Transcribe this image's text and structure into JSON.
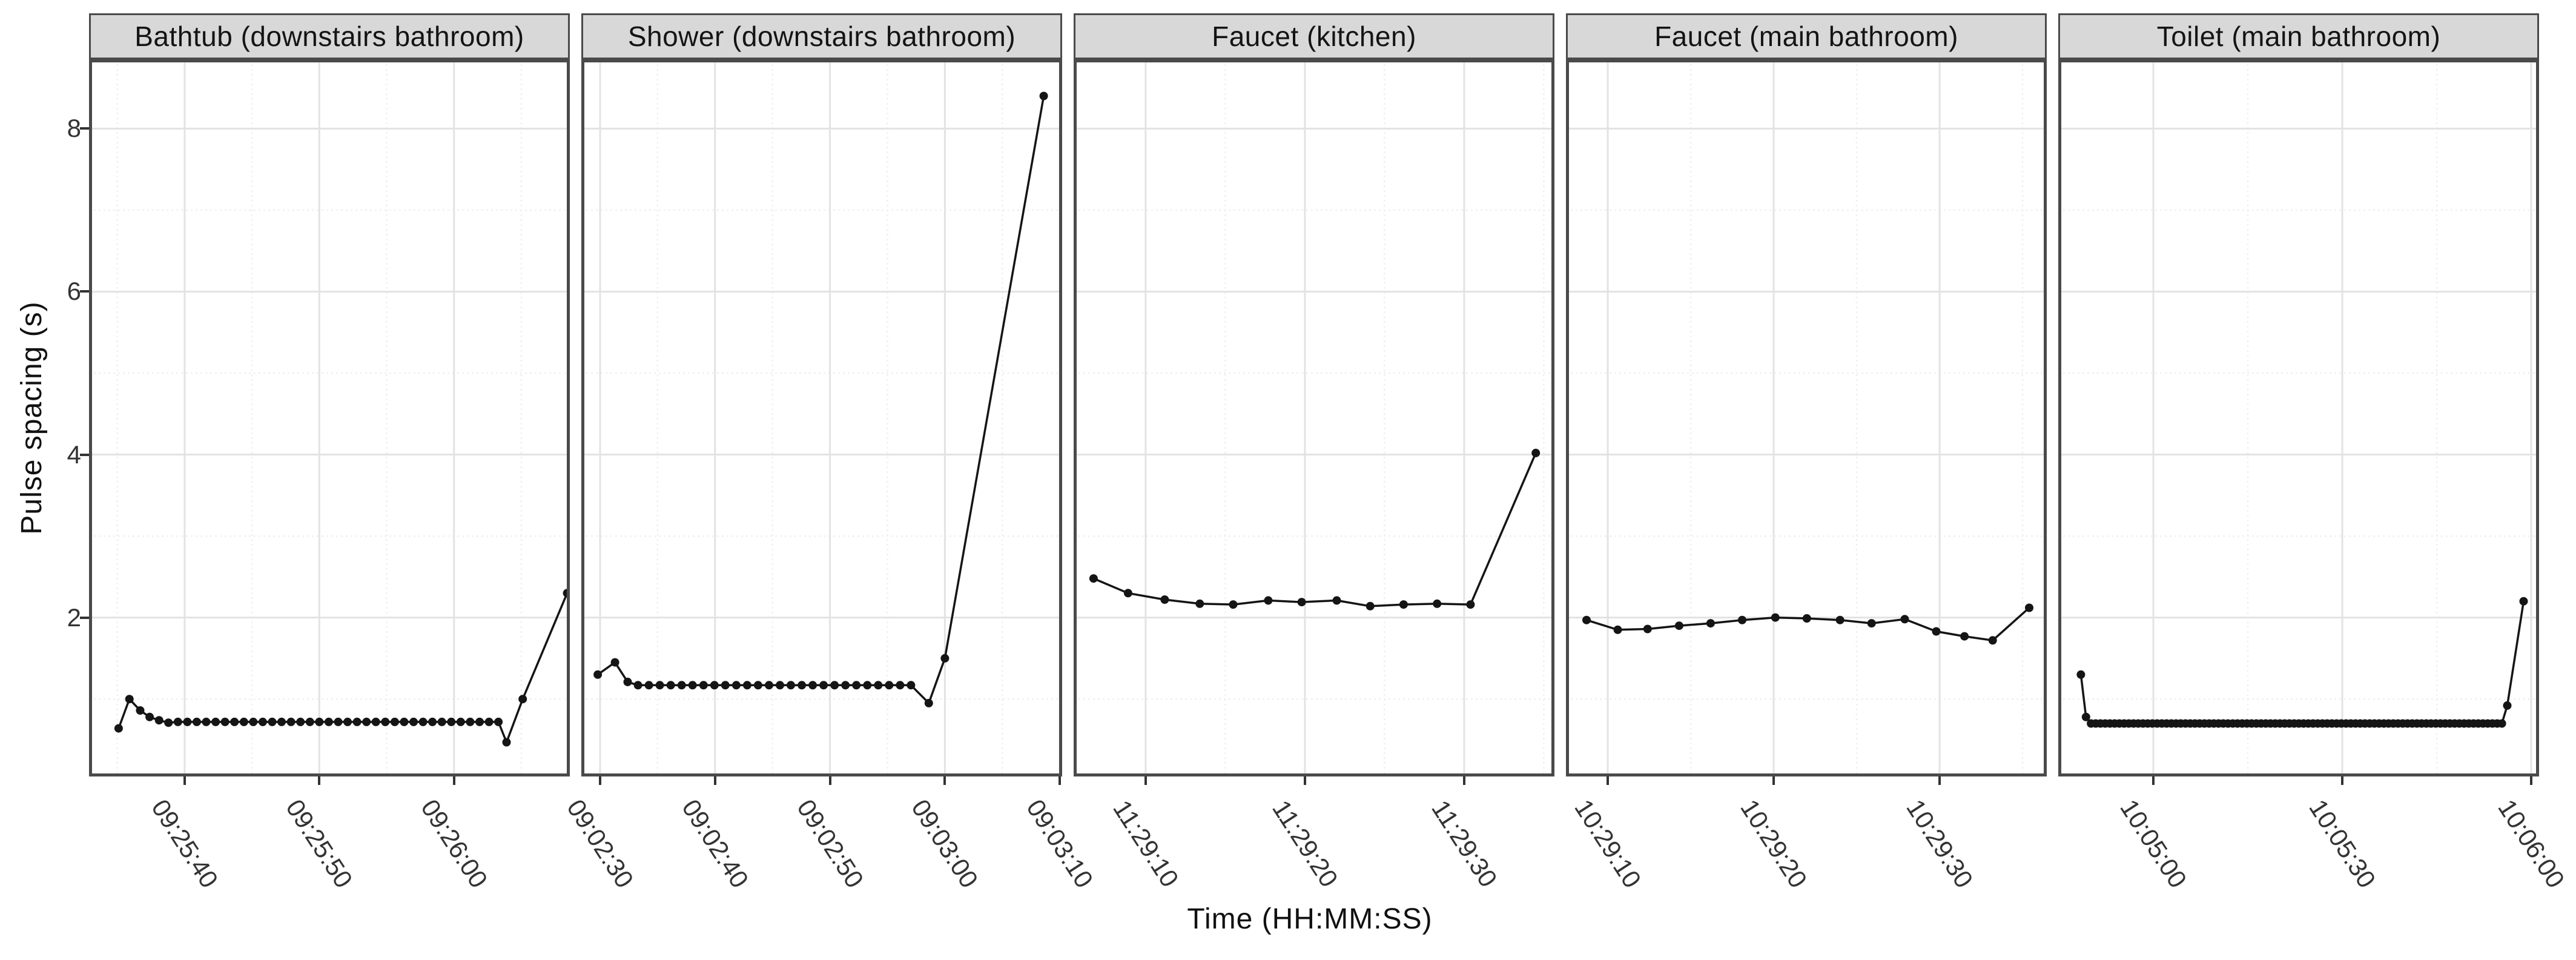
{
  "chart_data": {
    "type": "line",
    "xlabel": "Time (HH:MM:SS)",
    "ylabel": "Pulse spacing (s)",
    "ylim": [
      0.05,
      8.85
    ],
    "y_ticks": [
      2,
      4,
      6,
      8
    ],
    "y_minor": [
      1,
      3,
      5,
      7
    ],
    "grid": "on",
    "legend": "none",
    "facets": [
      {
        "title": "Bathtub (downstairs bathroom)",
        "x_ticks": [
          {
            "label": "09:25:40",
            "t": 0
          },
          {
            "label": "09:25:50",
            "t": 10
          },
          {
            "label": "09:26:00",
            "t": 20
          }
        ],
        "x_minor": [
          -5,
          5,
          15,
          25
        ],
        "xlim": [
          -7.1,
          28.6
        ],
        "head": [
          [
            -4.9,
            0.64
          ],
          [
            -4.1,
            1.0
          ],
          [
            -3.3,
            0.86
          ],
          [
            -2.6,
            0.78
          ],
          [
            -1.9,
            0.74
          ],
          [
            -1.2,
            0.71
          ]
        ],
        "run": {
          "from": -0.5,
          "to": 23.3,
          "step": 0.7,
          "value": 0.72
        },
        "tail": [
          [
            23.9,
            0.47
          ],
          [
            25.1,
            1.0
          ],
          [
            28.4,
            2.3
          ]
        ]
      },
      {
        "title": "Shower (downstairs bathroom)",
        "x_ticks": [
          {
            "label": "09:02:30",
            "t": 0
          },
          {
            "label": "09:02:40",
            "t": 10
          },
          {
            "label": "09:02:50",
            "t": 20
          },
          {
            "label": "09:03:00",
            "t": 30
          },
          {
            "label": "09:03:10",
            "t": 40
          }
        ],
        "x_minor": [
          5,
          15,
          25,
          35
        ],
        "xlim": [
          -1.63,
          40.2
        ],
        "head": [
          [
            -0.2,
            1.3
          ],
          [
            1.3,
            1.45
          ],
          [
            2.4,
            1.21
          ]
        ],
        "run": {
          "from": 3.3,
          "to": 27.6,
          "step": 0.95,
          "value": 1.17
        },
        "tail": [
          [
            28.6,
            0.95
          ],
          [
            30.0,
            1.5
          ],
          [
            38.6,
            8.4
          ]
        ]
      },
      {
        "title": "Faucet (kitchen)",
        "x_ticks": [
          {
            "label": "11:29:10",
            "t": 0
          },
          {
            "label": "11:29:20",
            "t": 10
          },
          {
            "label": "11:29:30",
            "t": 20
          }
        ],
        "x_minor": [
          5,
          15,
          25
        ],
        "xlim": [
          -4.52,
          25.67
        ],
        "points": [
          [
            -3.27,
            2.48
          ],
          [
            -1.1,
            2.3
          ],
          [
            1.2,
            2.22
          ],
          [
            3.4,
            2.17
          ],
          [
            5.5,
            2.16
          ],
          [
            7.7,
            2.21
          ],
          [
            9.8,
            2.19
          ],
          [
            12.0,
            2.21
          ],
          [
            14.1,
            2.14
          ],
          [
            16.2,
            2.16
          ],
          [
            18.3,
            2.17
          ],
          [
            20.4,
            2.16
          ],
          [
            24.5,
            4.02
          ]
        ]
      },
      {
        "title": "Faucet (main bathroom)",
        "x_ticks": [
          {
            "label": "10:29:10",
            "t": 0
          },
          {
            "label": "10:29:20",
            "t": 10
          },
          {
            "label": "10:29:30",
            "t": 20
          }
        ],
        "x_minor": [
          5,
          15,
          25
        ],
        "xlim": [
          -2.52,
          26.46
        ],
        "points": [
          [
            -1.28,
            1.97
          ],
          [
            0.6,
            1.85
          ],
          [
            2.4,
            1.86
          ],
          [
            4.3,
            1.9
          ],
          [
            6.2,
            1.93
          ],
          [
            8.1,
            1.97
          ],
          [
            10.1,
            2.0
          ],
          [
            12.0,
            1.99
          ],
          [
            14.0,
            1.97
          ],
          [
            15.9,
            1.93
          ],
          [
            17.9,
            1.98
          ],
          [
            19.8,
            1.83
          ],
          [
            21.5,
            1.77
          ],
          [
            23.2,
            1.72
          ],
          [
            25.4,
            2.12
          ]
        ]
      },
      {
        "title": "Toilet (main bathroom)",
        "x_ticks": [
          {
            "label": "10:05:00",
            "t": 0
          },
          {
            "label": "10:05:30",
            "t": 30
          },
          {
            "label": "10:06:00",
            "t": 60
          }
        ],
        "x_minor": [
          15,
          45
        ],
        "xlim": [
          -15.1,
          61.25
        ],
        "head": [
          [
            -11.5,
            1.3
          ],
          [
            -10.7,
            0.78
          ]
        ],
        "run": {
          "from": -9.9,
          "to": 55.4,
          "step": 0.75,
          "value": 0.7
        },
        "tail": [
          [
            56.2,
            0.92
          ],
          [
            58.8,
            2.2
          ]
        ]
      }
    ],
    "style": {
      "strip_fill": "#d8d8d8",
      "panel_border": "#4a4a4a",
      "grid_major": "#e3e3e3",
      "grid_minor": "#f0f0f0",
      "series_color": "#151515",
      "tick_color": "#333333",
      "title_color": "#111111"
    }
  }
}
